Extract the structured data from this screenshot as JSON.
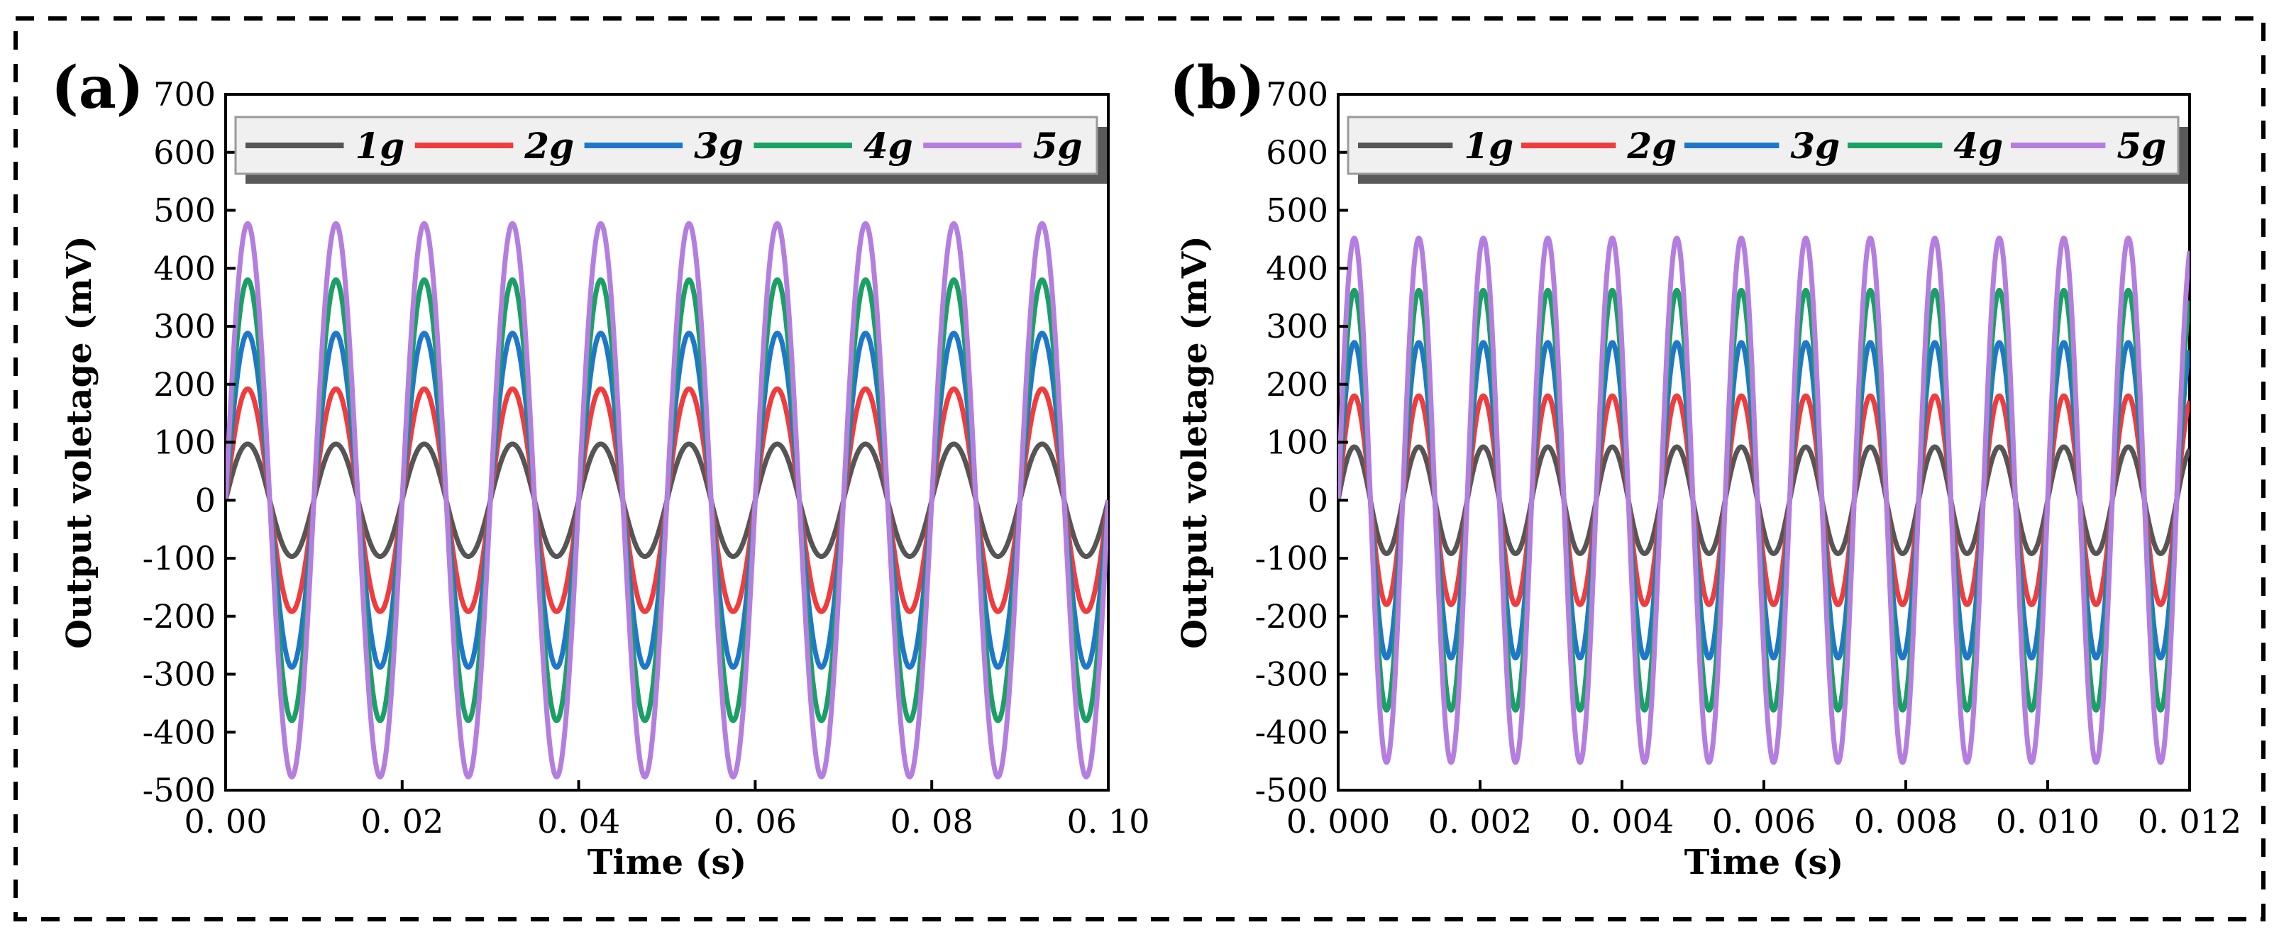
{
  "chart_data": [
    {
      "type": "line",
      "panel_label": "(a)",
      "xlabel": "Time (s)",
      "ylabel": "Output voletage (mV)",
      "xlim": [
        0,
        0.1
      ],
      "ylim": [
        -500,
        700
      ],
      "xticks": [
        0.0,
        0.02,
        0.04,
        0.06,
        0.08,
        0.1
      ],
      "xtick_labels": [
        "0. 00",
        "0. 02",
        "0. 04",
        "0. 06",
        "0. 08",
        "0. 10"
      ],
      "yticks": [
        -500,
        -400,
        -300,
        -200,
        -100,
        0,
        100,
        200,
        300,
        400,
        500,
        600,
        700
      ],
      "ytick_labels": [
        "-500",
        "-400",
        "-300",
        "-200",
        "-100",
        "0",
        "100",
        "200",
        "300",
        "400",
        "500",
        "600",
        "700"
      ],
      "legend_position": "top",
      "frequency_hz": 100,
      "series": [
        {
          "name": "1g",
          "color": "#555555",
          "amplitude_mV": 97,
          "offset_mV": 0
        },
        {
          "name": "2g",
          "color": "#f03c3c",
          "amplitude_mV": 192,
          "offset_mV": 0
        },
        {
          "name": "3g",
          "color": "#1f77c9",
          "amplitude_mV": 288,
          "offset_mV": 0
        },
        {
          "name": "4g",
          "color": "#1aa065",
          "amplitude_mV": 380,
          "offset_mV": 0
        },
        {
          "name": "5g",
          "color": "#b47ee0",
          "amplitude_mV": 477,
          "offset_mV": 0
        }
      ]
    },
    {
      "type": "line",
      "panel_label": "(b)",
      "xlabel": "Time (s)",
      "ylabel": "Output voletage (mV)",
      "xlim": [
        0,
        0.012
      ],
      "ylim": [
        -500,
        700
      ],
      "xticks": [
        0.0,
        0.002,
        0.004,
        0.006,
        0.008,
        0.01,
        0.012
      ],
      "xtick_labels": [
        "0. 000",
        "0. 002",
        "0. 004",
        "0. 006",
        "0. 008",
        "0. 010",
        "0. 012"
      ],
      "yticks": [
        -500,
        -400,
        -300,
        -200,
        -100,
        0,
        100,
        200,
        300,
        400,
        500,
        600,
        700
      ],
      "ytick_labels": [
        "-500",
        "-400",
        "-300",
        "-200",
        "-100",
        "0",
        "100",
        "200",
        "300",
        "400",
        "500",
        "600",
        "700"
      ],
      "legend_position": "top",
      "frequency_hz": 1100,
      "series": [
        {
          "name": "1g",
          "color": "#555555",
          "amplitude_mV": 92,
          "offset_mV": 0
        },
        {
          "name": "2g",
          "color": "#f03c3c",
          "amplitude_mV": 180,
          "offset_mV": 0
        },
        {
          "name": "3g",
          "color": "#1f77c9",
          "amplitude_mV": 272,
          "offset_mV": 0
        },
        {
          "name": "4g",
          "color": "#1aa065",
          "amplitude_mV": 362,
          "offset_mV": 0
        },
        {
          "name": "5g",
          "color": "#b47ee0",
          "amplitude_mV": 452,
          "offset_mV": 0
        }
      ]
    }
  ]
}
